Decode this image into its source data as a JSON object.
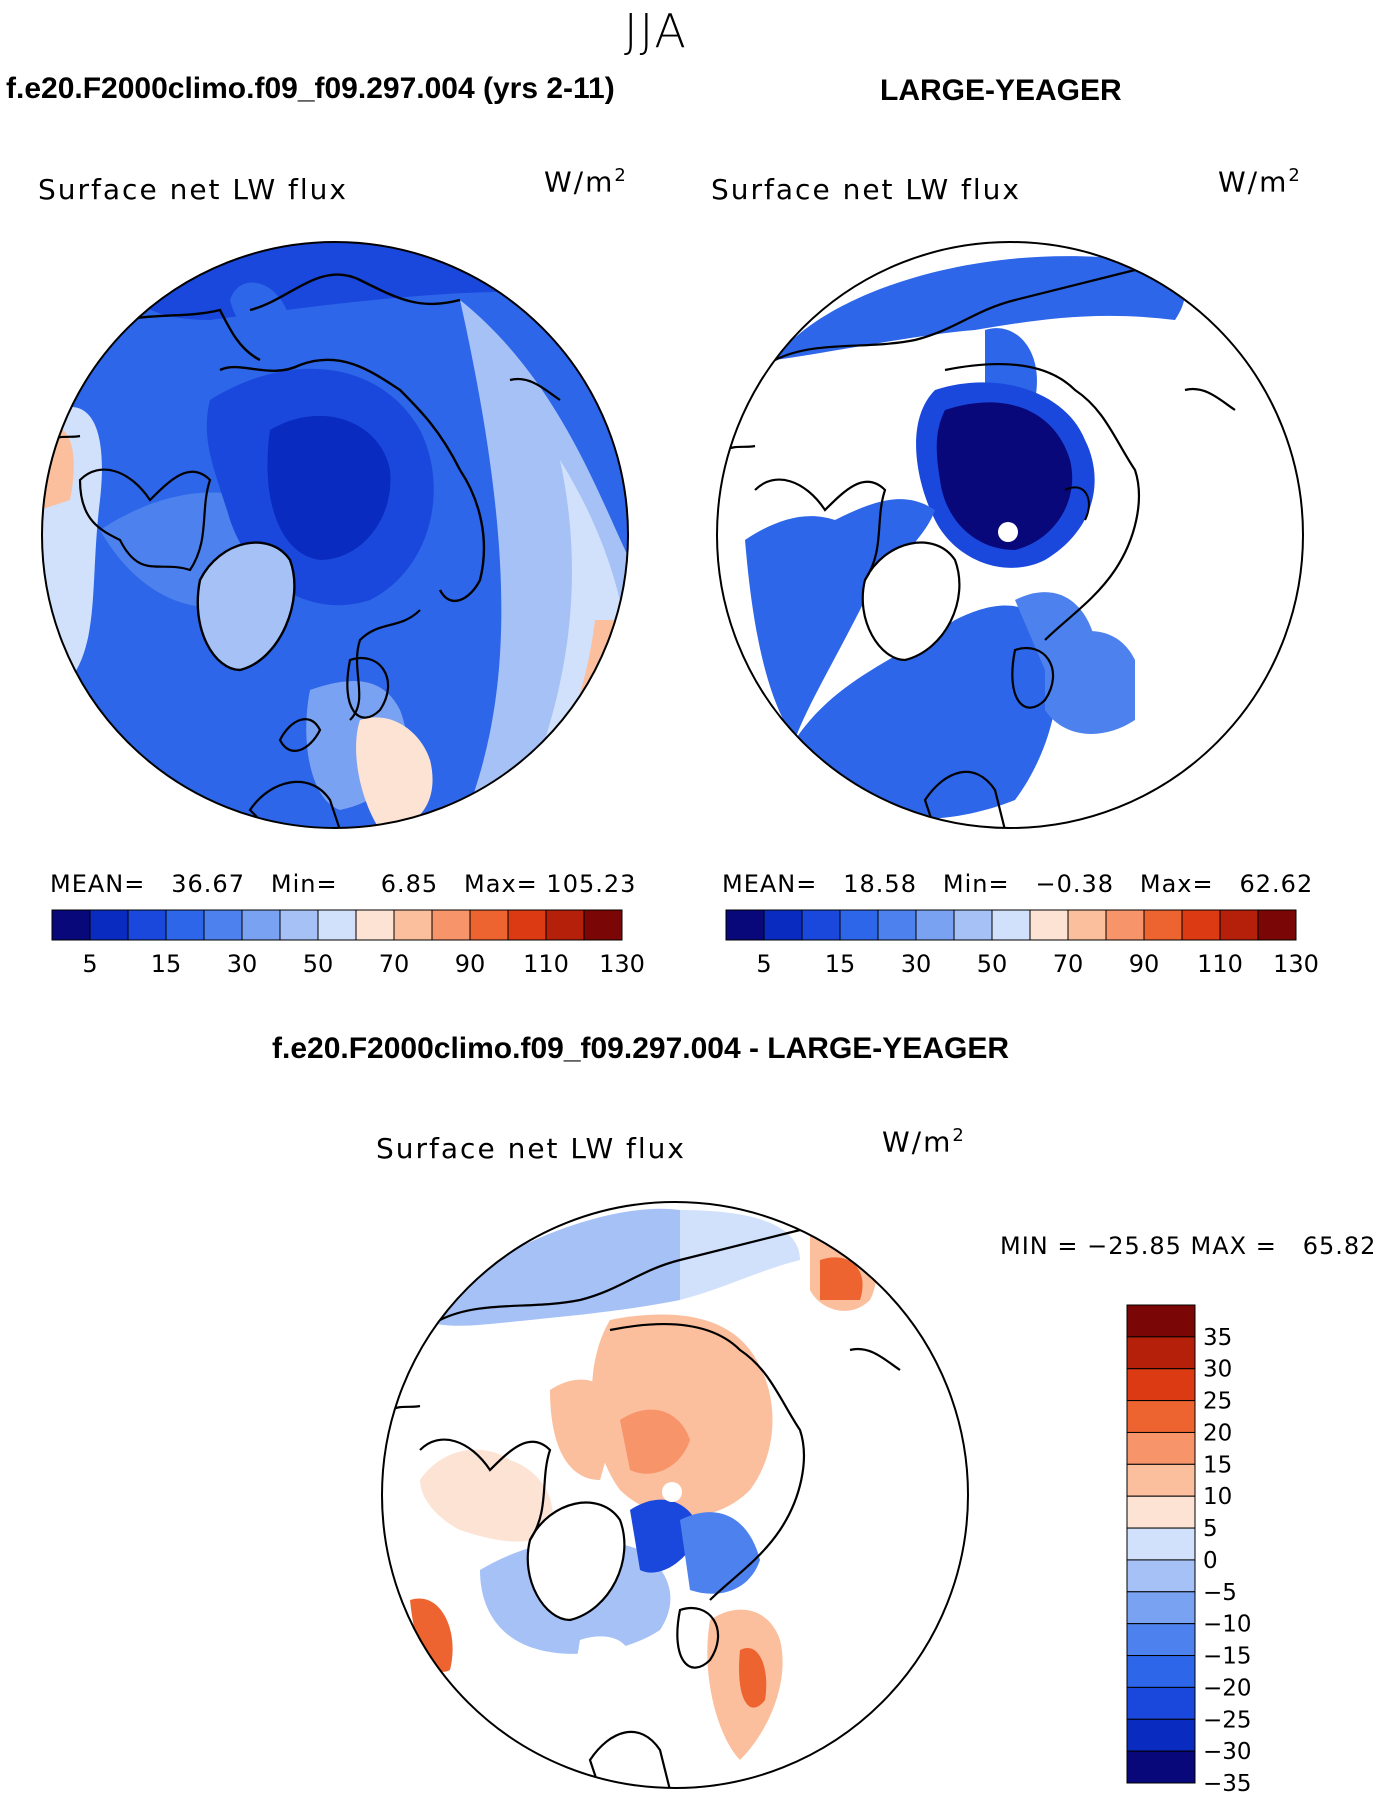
{
  "figure": {
    "season": "JJA",
    "left_header": "f.e20.F2000climo.f09_f09.297.004 (yrs 2-11)",
    "right_header": "LARGE-YEAGER",
    "diff_header": "f.e20.F2000climo.f09_f09.297.004 - LARGE-YEAGER"
  },
  "colors": {
    "seq_palette": [
      "#08087a",
      "#0a2bbf",
      "#1a48dd",
      "#2d66e8",
      "#4d82ee",
      "#7aa2f2",
      "#a6c1f6",
      "#d1e1fb",
      "#fde3d4",
      "#fbbf9e",
      "#f79469",
      "#ee6430",
      "#dc3a12",
      "#b4200a",
      "#7a0705"
    ],
    "div_palette": [
      "#08087a",
      "#0a2bbf",
      "#1a48dd",
      "#2d66e8",
      "#4d82ee",
      "#7aa2f2",
      "#a6c1f6",
      "#d1e1fb",
      "#fde3d4",
      "#fbbf9e",
      "#f79469",
      "#ee6430",
      "#dc3a12",
      "#b4200a",
      "#7a0705"
    ],
    "land_mask": "#ffffff",
    "coast": "#000000"
  },
  "panels": {
    "left": {
      "title": "Surface net LW flux",
      "units_base": "W/m",
      "units_exp": "2",
      "mean_label": "MEAN=",
      "mean_value": "36.67",
      "min_label": "Min=",
      "min_value": "6.85",
      "max_label": "Max=",
      "max_value": "105.23",
      "colorbar_ticks": [
        "5",
        "15",
        "30",
        "50",
        "70",
        "90",
        "110",
        "130"
      ]
    },
    "right": {
      "title": "Surface net LW flux",
      "units_base": "W/m",
      "units_exp": "2",
      "mean_label": "MEAN=",
      "mean_value": "18.58",
      "min_label": "Min=",
      "min_value": "−0.38",
      "max_label": "Max=",
      "max_value": "62.62",
      "colorbar_ticks": [
        "5",
        "15",
        "30",
        "50",
        "70",
        "90",
        "110",
        "130"
      ]
    },
    "diff": {
      "title": "Surface net LW flux",
      "units_base": "W/m",
      "units_exp": "2",
      "minmax_text": "MIN = −25.85 MAX =   65.82",
      "colorbar_labels": [
        "35",
        "30",
        "25",
        "20",
        "15",
        "10",
        "5",
        "0",
        "−5",
        "−10",
        "−15",
        "−20",
        "−25",
        "−30",
        "−35"
      ]
    }
  },
  "chart_data": [
    {
      "type": "heatmap",
      "title": "Surface net LW flux",
      "subtitle": "f.e20.F2000climo.f09_f09.297.004 (yrs 2-11)",
      "units": "W/m2",
      "projection": "north-polar-stereographic",
      "mean": 36.67,
      "min": 6.85,
      "max": 105.23,
      "contour_levels": [
        5,
        10,
        15,
        20,
        30,
        40,
        50,
        60,
        70,
        80,
        90,
        100,
        110,
        120,
        130
      ]
    },
    {
      "type": "heatmap",
      "title": "Surface net LW flux",
      "subtitle": "LARGE-YEAGER",
      "units": "W/m2",
      "projection": "north-polar-stereographic",
      "mean": 18.58,
      "min": -0.38,
      "max": 62.62,
      "contour_levels": [
        5,
        10,
        15,
        20,
        30,
        40,
        50,
        60,
        70,
        80,
        90,
        100,
        110,
        120,
        130
      ]
    },
    {
      "type": "heatmap",
      "title": "Surface net LW flux",
      "subtitle": "f.e20.F2000climo.f09_f09.297.004 - LARGE-YEAGER",
      "units": "W/m2",
      "projection": "north-polar-stereographic",
      "min": -25.85,
      "max": 65.82,
      "contour_levels": [
        -35,
        -30,
        -25,
        -20,
        -15,
        -10,
        -5,
        0,
        5,
        10,
        15,
        20,
        25,
        30,
        35
      ]
    }
  ]
}
